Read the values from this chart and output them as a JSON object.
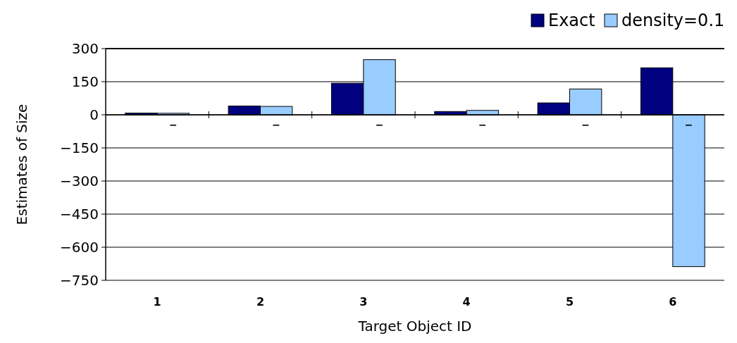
{
  "chart_data": {
    "type": "bar",
    "xlabel": "Target Object ID",
    "ylabel": "Estimates of Size",
    "categories": [
      "1",
      "2",
      "3",
      "4",
      "5",
      "6"
    ],
    "series": [
      {
        "name": "Exact",
        "color": "#000080",
        "values": [
          8,
          40,
          143,
          15,
          54,
          213
        ]
      },
      {
        "name": "density=0.1",
        "color": "#99ccff",
        "values": [
          7,
          38,
          250,
          20,
          117,
          -688
        ]
      }
    ],
    "ylim": [
      -750,
      300
    ],
    "yticks": [
      {
        "value": -750,
        "label": "−750"
      },
      {
        "value": -600,
        "label": "−600"
      },
      {
        "value": -450,
        "label": "−450"
      },
      {
        "value": -300,
        "label": "−300"
      },
      {
        "value": -150,
        "label": "−150"
      },
      0,
      150,
      300
    ],
    "grid": "y",
    "legend": "top right",
    "annotations": [
      "−",
      "−",
      "−",
      "−",
      "−",
      "−"
    ]
  }
}
